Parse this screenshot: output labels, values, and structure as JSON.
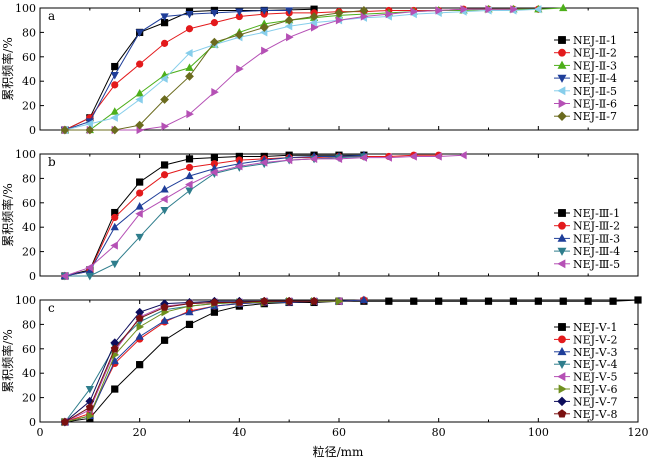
{
  "chart_data": [
    {
      "type": "line",
      "panel_label": "a",
      "xlim": [
        0,
        120
      ],
      "ylim": [
        0,
        100
      ],
      "yticks": [
        0,
        20,
        40,
        60,
        80,
        100
      ],
      "ylabel": "累积频率/%",
      "legend_position": "right",
      "series": [
        {
          "name": "NEJ-Ⅱ-1",
          "color": "#000000",
          "marker": "square",
          "x": [
            5,
            10,
            15,
            20,
            25,
            30,
            35,
            45,
            55
          ],
          "y": [
            0,
            10,
            52,
            80,
            88,
            97,
            98,
            98,
            99
          ]
        },
        {
          "name": "NEJ-Ⅱ-2",
          "color": "#e31a1c",
          "marker": "circle",
          "x": [
            5,
            10,
            15,
            20,
            25,
            30,
            35,
            40,
            45,
            50,
            55,
            60,
            65,
            70,
            75,
            80,
            85,
            90,
            95,
            100
          ],
          "y": [
            0,
            10,
            37,
            54,
            71,
            83,
            88,
            93,
            95,
            96,
            96,
            97,
            97,
            98,
            98,
            98,
            99,
            99,
            99,
            99
          ]
        },
        {
          "name": "NEJ-Ⅱ-3",
          "color": "#4daf1a",
          "marker": "triangle-up",
          "x": [
            5,
            10,
            15,
            20,
            25,
            30,
            35,
            40,
            45,
            50,
            55,
            60,
            65,
            70,
            75,
            80,
            85,
            90,
            95,
            100,
            105
          ],
          "y": [
            0,
            0,
            15,
            30,
            45,
            51,
            70,
            80,
            87,
            90,
            92,
            94,
            95,
            96,
            97,
            98,
            98,
            99,
            99,
            99,
            100
          ]
        },
        {
          "name": "NEJ-Ⅱ-4",
          "color": "#1f3e99",
          "marker": "triangle-down",
          "x": [
            5,
            10,
            15,
            20,
            25,
            30,
            35,
            40,
            45,
            50
          ],
          "y": [
            0,
            7,
            45,
            80,
            93,
            95,
            96,
            97,
            98,
            98
          ]
        },
        {
          "name": "NEJ-Ⅱ-5",
          "color": "#87ceeb",
          "marker": "triangle-left",
          "x": [
            5,
            10,
            15,
            20,
            25,
            30,
            35,
            40,
            45,
            50,
            55,
            60,
            65,
            70,
            75,
            80,
            85,
            90,
            95,
            100
          ],
          "y": [
            0,
            5,
            10,
            25,
            42,
            63,
            70,
            76,
            80,
            85,
            88,
            90,
            92,
            93,
            95,
            96,
            97,
            98,
            98,
            99
          ]
        },
        {
          "name": "NEJ-Ⅱ-6",
          "color": "#b550b5",
          "marker": "triangle-right",
          "x": [
            5,
            10,
            15,
            20,
            25,
            30,
            35,
            40,
            45,
            50,
            55,
            60,
            65,
            70,
            75,
            80,
            85,
            90,
            95
          ],
          "y": [
            0,
            0,
            0,
            0,
            3,
            13,
            31,
            50,
            65,
            76,
            84,
            90,
            93,
            95,
            97,
            98,
            99,
            99,
            99
          ]
        },
        {
          "name": "NEJ-Ⅱ-7",
          "color": "#6b6b1e",
          "marker": "diamond",
          "x": [
            5,
            10,
            15,
            20,
            25,
            30,
            35,
            40,
            45,
            50,
            55,
            60,
            65
          ],
          "y": [
            0,
            0,
            0,
            4,
            25,
            44,
            72,
            78,
            84,
            90,
            93,
            96,
            98
          ]
        }
      ]
    },
    {
      "type": "line",
      "panel_label": "b",
      "xlim": [
        0,
        120
      ],
      "ylim": [
        0,
        100
      ],
      "yticks": [
        0,
        20,
        40,
        60,
        80,
        100
      ],
      "ylabel": "累积频率/%",
      "legend_position": "right",
      "series": [
        {
          "name": "NEJ-Ⅲ-1",
          "color": "#000000",
          "marker": "square",
          "x": [
            5,
            10,
            15,
            20,
            25,
            30,
            35,
            40,
            45,
            50,
            55,
            60,
            65
          ],
          "y": [
            0,
            5,
            52,
            77,
            91,
            96,
            97,
            98,
            98,
            99,
            99,
            99,
            99
          ]
        },
        {
          "name": "NEJ-Ⅲ-2",
          "color": "#e31a1c",
          "marker": "circle",
          "x": [
            5,
            10,
            15,
            20,
            25,
            30,
            35,
            40,
            45,
            50,
            55,
            60,
            65,
            70,
            75,
            80
          ],
          "y": [
            0,
            4,
            48,
            68,
            83,
            89,
            92,
            95,
            96,
            97,
            97,
            98,
            98,
            98,
            99,
            99
          ]
        },
        {
          "name": "NEJ-Ⅲ-3",
          "color": "#1f3e99",
          "marker": "triangle-up",
          "x": [
            5,
            10,
            15,
            20,
            25,
            30,
            35,
            40,
            45,
            50,
            55,
            60,
            65
          ],
          "y": [
            0,
            4,
            40,
            57,
            71,
            82,
            88,
            92,
            95,
            97,
            98,
            98,
            99
          ]
        },
        {
          "name": "NEJ-Ⅲ-4",
          "color": "#2e7d8c",
          "marker": "triangle-down",
          "x": [
            5,
            10,
            15,
            20,
            25,
            30,
            35,
            40,
            45,
            50,
            55,
            60,
            65
          ],
          "y": [
            0,
            0,
            10,
            32,
            54,
            70,
            84,
            89,
            92,
            95,
            96,
            97,
            98
          ]
        },
        {
          "name": "NEJ-Ⅲ-5",
          "color": "#b550b5",
          "marker": "triangle-left",
          "x": [
            5,
            10,
            15,
            20,
            25,
            30,
            35,
            40,
            45,
            50,
            55,
            60,
            65,
            70,
            75,
            80,
            85
          ],
          "y": [
            0,
            7,
            25,
            51,
            63,
            75,
            85,
            90,
            93,
            95,
            96,
            96,
            97,
            97,
            98,
            98,
            99
          ]
        }
      ]
    },
    {
      "type": "line",
      "panel_label": "c",
      "xlim": [
        0,
        120
      ],
      "ylim": [
        0,
        100
      ],
      "xticks": [
        0,
        20,
        40,
        60,
        80,
        100,
        120
      ],
      "yticks": [
        0,
        20,
        40,
        60,
        80,
        100
      ],
      "ylabel": "累积频率/%",
      "xlabel": "粒径/mm",
      "legend_position": "right",
      "series": [
        {
          "name": "NEJ-Ⅴ-1",
          "color": "#000000",
          "marker": "square",
          "x": [
            5,
            10,
            15,
            20,
            25,
            30,
            35,
            40,
            45,
            50,
            55,
            60,
            65,
            70,
            75,
            80,
            85,
            90,
            95,
            100,
            105,
            110,
            115,
            120
          ],
          "y": [
            0,
            3,
            27,
            47,
            67,
            80,
            90,
            95,
            97,
            98,
            98,
            99,
            99,
            99,
            99,
            99,
            99,
            99,
            99,
            99,
            99,
            99,
            99,
            100
          ]
        },
        {
          "name": "NEJ-Ⅴ-2",
          "color": "#e31a1c",
          "marker": "circle",
          "x": [
            5,
            10,
            15,
            20,
            25,
            30,
            35,
            40,
            45,
            50,
            55,
            60,
            65
          ],
          "y": [
            0,
            7,
            48,
            68,
            82,
            91,
            95,
            97,
            98,
            98,
            99,
            99,
            100
          ]
        },
        {
          "name": "NEJ-Ⅴ-3",
          "color": "#1f3e99",
          "marker": "triangle-up",
          "x": [
            5,
            10,
            15,
            20,
            25,
            30,
            35,
            40,
            45,
            50,
            55,
            60,
            65
          ],
          "y": [
            0,
            5,
            50,
            70,
            83,
            90,
            95,
            97,
            98,
            98,
            99,
            99,
            100
          ]
        },
        {
          "name": "NEJ-Ⅴ-4",
          "color": "#2e7d8c",
          "marker": "triangle-down",
          "x": [
            5,
            10,
            15,
            20,
            25,
            30,
            35,
            40,
            45,
            50,
            55
          ],
          "y": [
            0,
            27,
            62,
            82,
            92,
            95,
            97,
            98,
            99,
            99,
            99
          ]
        },
        {
          "name": "NEJ-Ⅴ-5",
          "color": "#b550b5",
          "marker": "triangle-left",
          "x": [
            5,
            10,
            15,
            20,
            25,
            30,
            35,
            40,
            45,
            50,
            55,
            60
          ],
          "y": [
            0,
            10,
            58,
            86,
            95,
            97,
            98,
            98,
            99,
            99,
            99,
            99
          ]
        },
        {
          "name": "NEJ-Ⅴ-6",
          "color": "#6f8f1e",
          "marker": "triangle-right",
          "x": [
            5,
            10,
            15,
            20,
            25,
            30,
            35,
            40,
            45,
            50,
            55,
            60
          ],
          "y": [
            0,
            5,
            55,
            78,
            90,
            95,
            97,
            98,
            98,
            99,
            99,
            99
          ]
        },
        {
          "name": "NEJ-Ⅴ-7",
          "color": "#0d0d5c",
          "marker": "diamond",
          "x": [
            5,
            10,
            15,
            20,
            25,
            30,
            35,
            40,
            45,
            50,
            55
          ],
          "y": [
            0,
            17,
            65,
            90,
            97,
            98,
            99,
            99,
            99,
            99,
            99
          ]
        },
        {
          "name": "NEJ-Ⅴ-8",
          "color": "#7a1010",
          "marker": "pentagon",
          "x": [
            5,
            10,
            15,
            20,
            25,
            30,
            35,
            40,
            45,
            50,
            55
          ],
          "y": [
            0,
            12,
            60,
            85,
            94,
            97,
            98,
            98,
            99,
            99,
            99
          ]
        }
      ]
    }
  ]
}
